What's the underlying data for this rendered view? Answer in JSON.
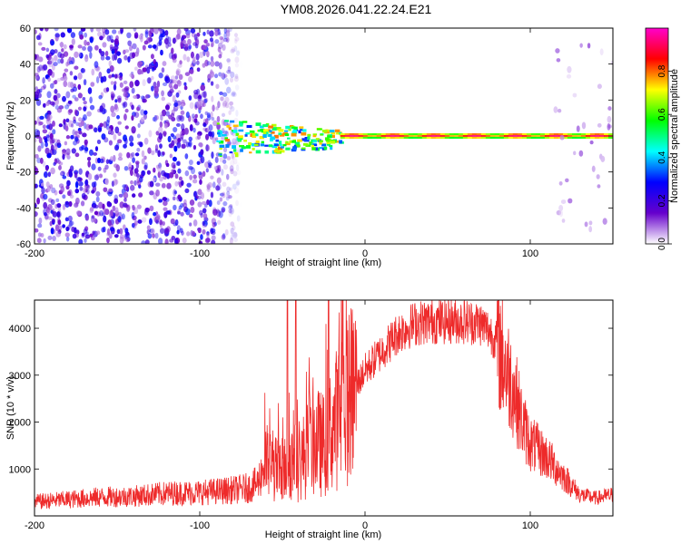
{
  "title": "YM08.2026.041.22.24.E21",
  "chart_data": [
    {
      "type": "heatmap",
      "xlabel": "Height of straight line (km)",
      "ylabel": "Frequency (Hz)",
      "xlim": [
        -200,
        150
      ],
      "ylim": [
        -60,
        60
      ],
      "xticks": [
        -200,
        -100,
        0,
        100
      ],
      "yticks": [
        -60,
        -40,
        -20,
        0,
        20,
        40,
        60
      ],
      "grid": false,
      "regions": [
        {
          "name": "noise",
          "x": [
            -200,
            -75
          ],
          "f": [
            -60,
            60
          ],
          "amplitude": [
            0.05,
            0.3
          ]
        },
        {
          "name": "onset",
          "x": [
            -90,
            -15
          ],
          "f": [
            -12,
            10
          ],
          "amplitude": [
            0.3,
            0.8
          ]
        },
        {
          "name": "carrier",
          "x": [
            -15,
            150
          ],
          "f": [
            -1.5,
            1.5
          ],
          "amplitude": [
            0.75,
            0.95
          ]
        },
        {
          "name": "noise",
          "x": [
            115,
            150
          ],
          "f": [
            -60,
            60
          ],
          "amplitude": [
            0.02,
            0.12
          ]
        }
      ],
      "colorbar": {
        "label": "Normalized spectral amplitude",
        "range": [
          0,
          1
        ],
        "ticks": [
          0.0,
          0.2,
          0.4,
          0.6,
          0.8
        ],
        "colormap": "rainbow",
        "stops": [
          "#ffffff",
          "#6600cc",
          "#0000ff",
          "#00ffff",
          "#00ff00",
          "#ffff00",
          "#ff0000",
          "#ff00cc"
        ]
      }
    },
    {
      "type": "line",
      "xlabel": "Height of straight line (km)",
      "ylabel": "SNR (10 * v/v)",
      "xlim": [
        -200,
        150
      ],
      "ylim": [
        0,
        4600
      ],
      "xticks": [
        -200,
        -100,
        0,
        100
      ],
      "yticks": [
        1000,
        2000,
        3000,
        4000
      ],
      "grid": false,
      "color": "#ee2a2a",
      "x": [
        -200,
        -180,
        -160,
        -140,
        -120,
        -100,
        -80,
        -70,
        -65,
        -60,
        -55,
        -50,
        -45,
        -40,
        -35,
        -30,
        -25,
        -20,
        -15,
        -10,
        -5,
        0,
        5,
        10,
        15,
        20,
        25,
        30,
        40,
        50,
        60,
        70,
        75,
        80,
        85,
        90,
        95,
        100,
        105,
        110,
        120,
        130,
        140,
        150
      ],
      "y": [
        300,
        350,
        400,
        420,
        480,
        500,
        550,
        600,
        700,
        1150,
        1000,
        900,
        1200,
        1100,
        1400,
        1600,
        1500,
        1900,
        2200,
        2500,
        2800,
        3100,
        3300,
        3500,
        3700,
        3900,
        4000,
        4100,
        4150,
        4150,
        4150,
        4100,
        3950,
        3700,
        3200,
        2700,
        2000,
        1550,
        1400,
        1250,
        850,
        450,
        380,
        450
      ],
      "spikes": [
        {
          "x": -47,
          "y": 4600
        },
        {
          "x": -42,
          "y": 4600
        },
        {
          "x": -22,
          "y": 4600
        }
      ]
    }
  ]
}
